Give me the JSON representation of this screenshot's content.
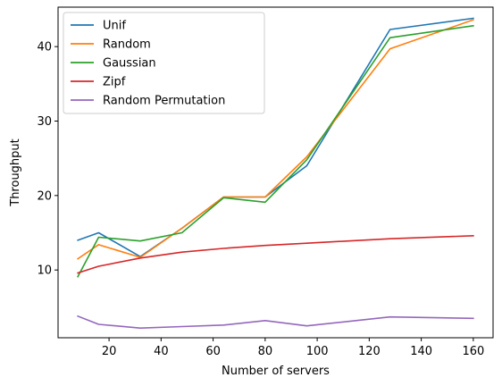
{
  "chart_data": {
    "type": "line",
    "title": "",
    "xlabel": "Number of servers",
    "ylabel": "Throughput",
    "xlim": [
      0.4,
      167.6
    ],
    "ylim": [
      0.9,
      45.3
    ],
    "xticks": [
      20,
      40,
      60,
      80,
      100,
      120,
      140,
      160
    ],
    "yticks": [
      10,
      20,
      30,
      40
    ],
    "grid": false,
    "legend_position": "top-left",
    "series": [
      {
        "name": "Unif",
        "color": "#1f77b4",
        "x": [
          8,
          16,
          32,
          48,
          64,
          80,
          96,
          128,
          160
        ],
        "y": [
          14.0,
          15.0,
          11.8,
          15.6,
          19.8,
          19.8,
          24.0,
          42.3,
          43.8
        ]
      },
      {
        "name": "Random",
        "color": "#ff7f0e",
        "x": [
          8,
          16,
          32,
          48,
          64,
          80,
          96,
          128,
          160
        ],
        "y": [
          11.5,
          13.4,
          11.7,
          15.6,
          19.8,
          19.8,
          25.2,
          39.7,
          43.6
        ]
      },
      {
        "name": "Gaussian",
        "color": "#2ca02c",
        "x": [
          8,
          16,
          32,
          48,
          64,
          80,
          96,
          128,
          160
        ],
        "y": [
          9.1,
          14.4,
          13.9,
          15.0,
          19.7,
          19.1,
          24.8,
          41.2,
          42.8
        ]
      },
      {
        "name": "Zipf",
        "color": "#d62728",
        "x": [
          8,
          16,
          32,
          48,
          64,
          80,
          96,
          128,
          160
        ],
        "y": [
          9.6,
          10.5,
          11.6,
          12.4,
          12.9,
          13.3,
          13.6,
          14.2,
          14.6
        ]
      },
      {
        "name": "Random Permutation",
        "color": "#9467bd",
        "x": [
          8,
          16,
          32,
          48,
          64,
          80,
          96,
          128,
          160
        ],
        "y": [
          3.8,
          2.7,
          2.2,
          2.4,
          2.6,
          3.2,
          2.5,
          3.7,
          3.5
        ]
      }
    ]
  }
}
